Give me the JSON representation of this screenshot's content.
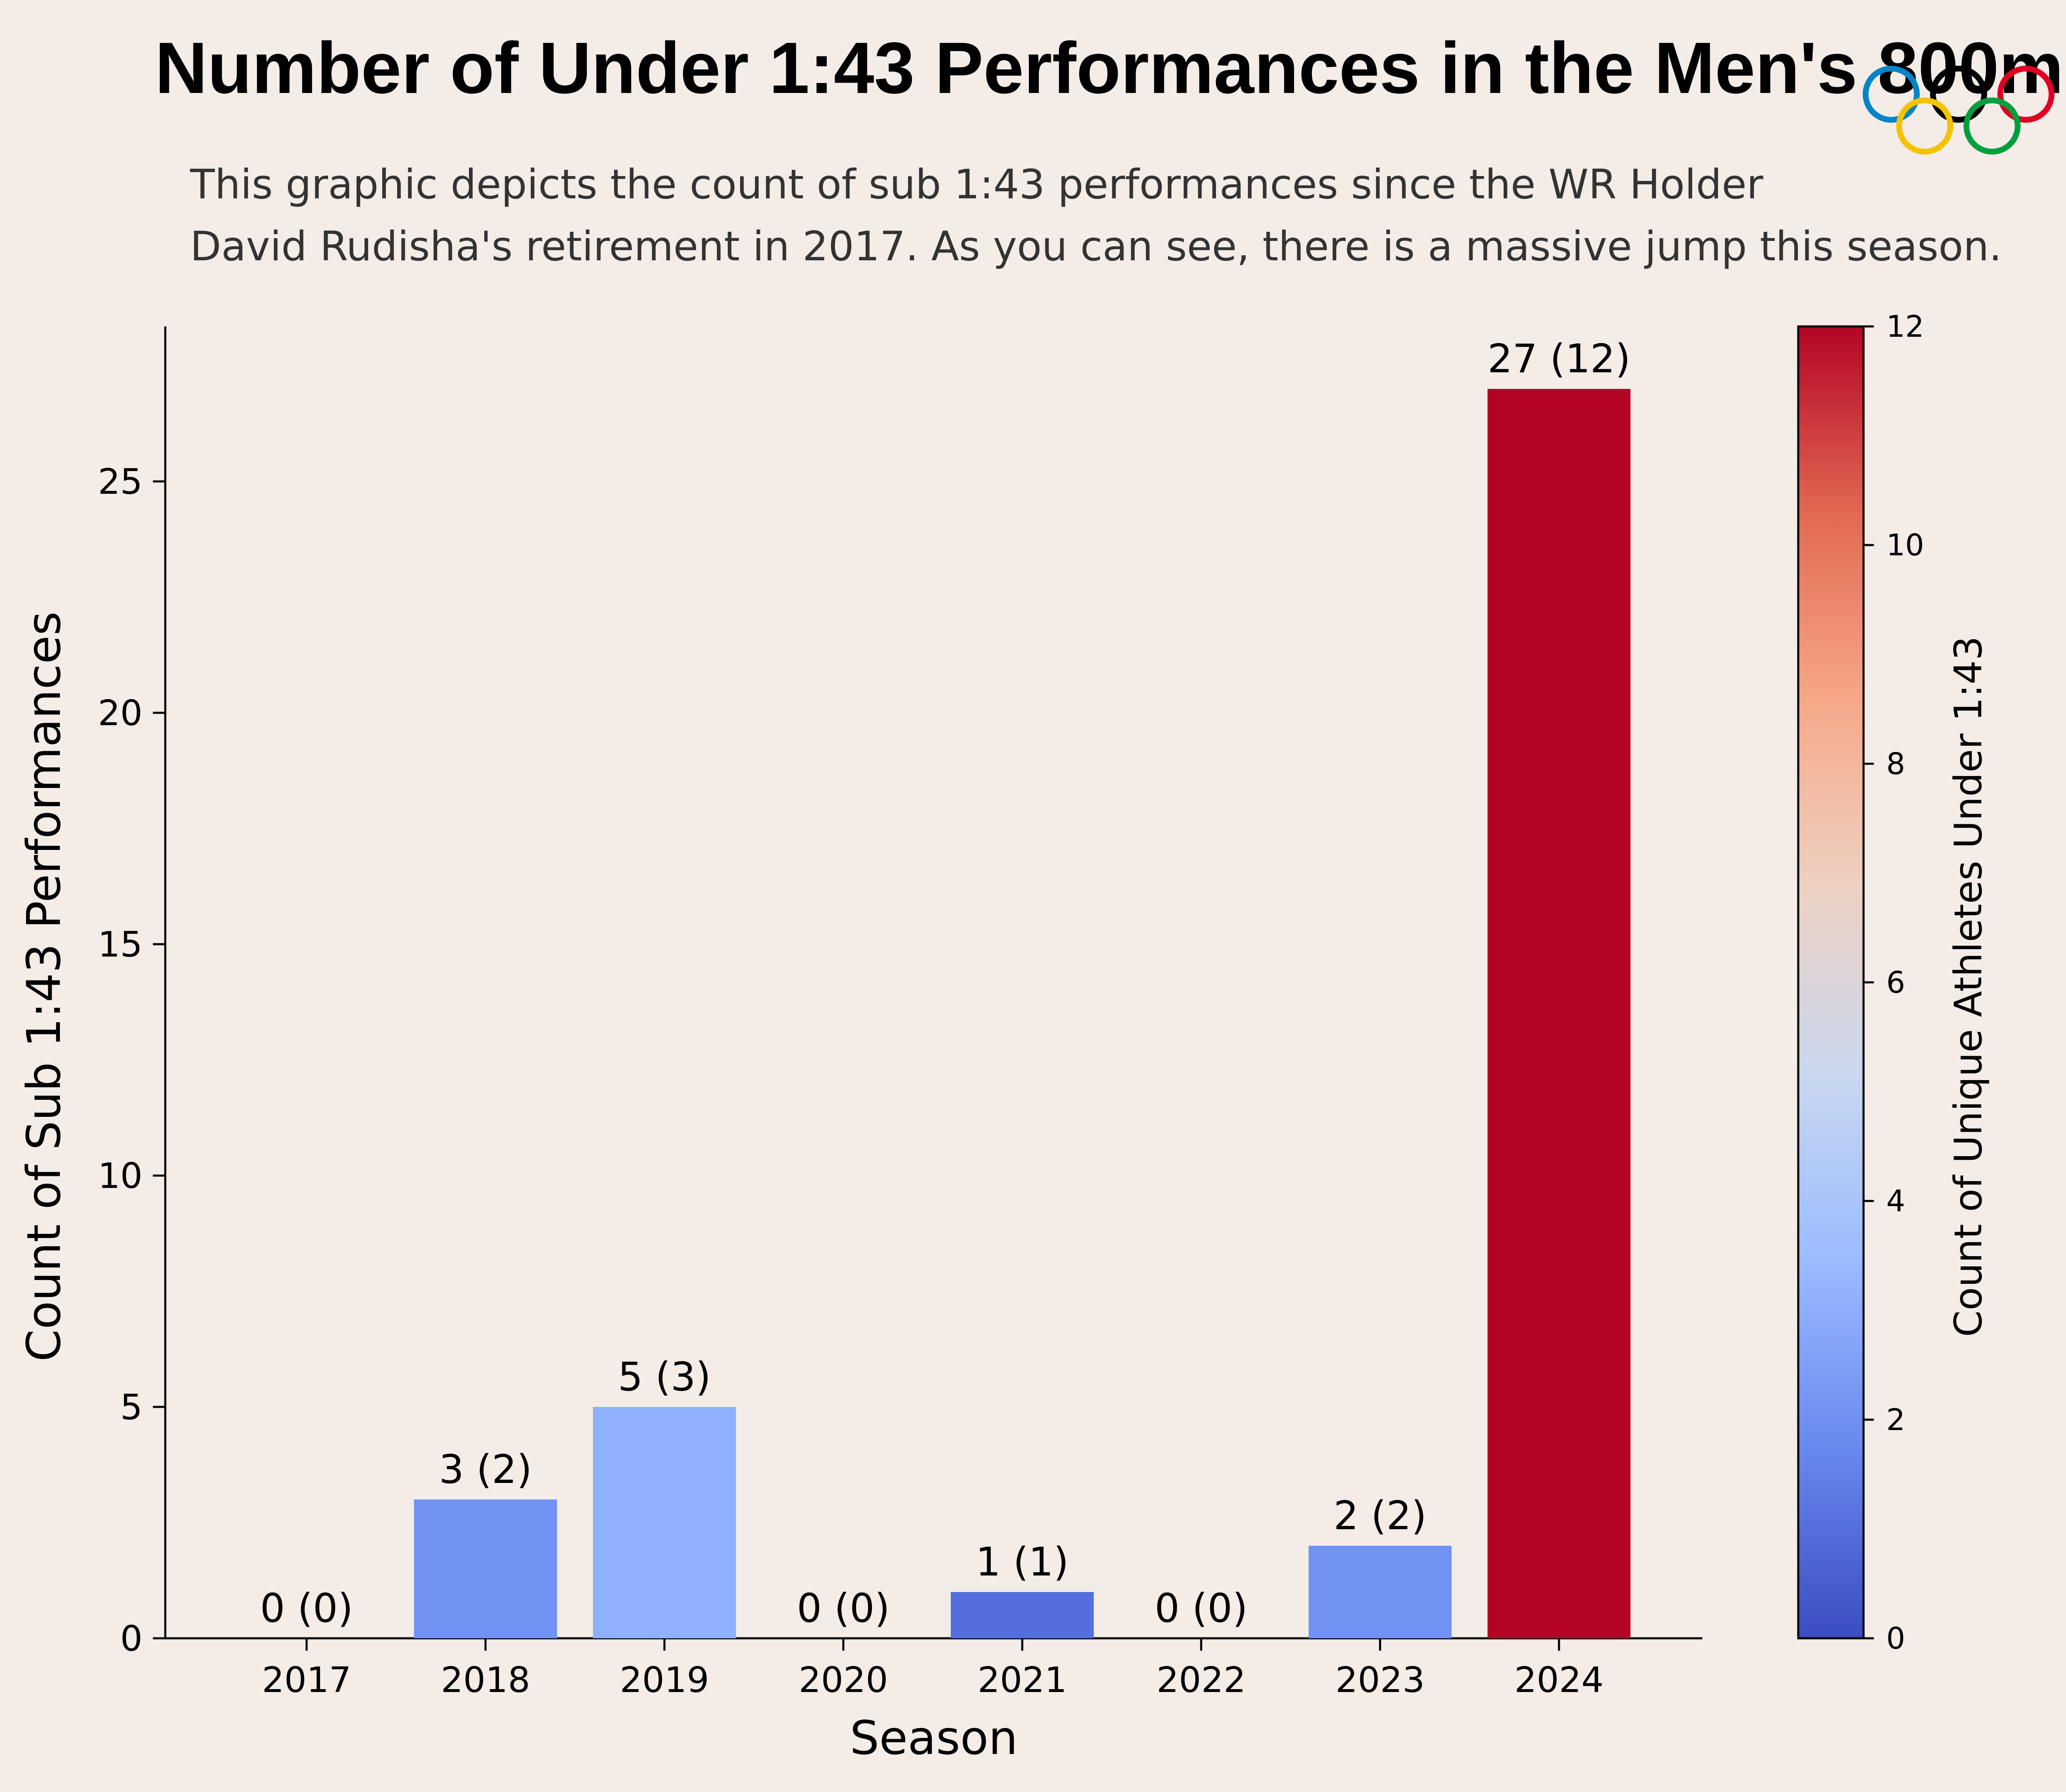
{
  "chart_data": {
    "type": "bar",
    "title": "Number of Under 1:43 Performances in the Men's 800m",
    "subtitle_lines": [
      "This graphic depicts the count of sub 1:43 performances since the WR Holder",
      "David Rudisha's retirement in 2017. As you can see, there is a massive jump this season."
    ],
    "categories": [
      "2017",
      "2018",
      "2019",
      "2020",
      "2021",
      "2022",
      "2023",
      "2024"
    ],
    "values": [
      0,
      3,
      5,
      0,
      1,
      0,
      2,
      27
    ],
    "unique_athletes": [
      0,
      2,
      3,
      0,
      1,
      0,
      2,
      12
    ],
    "bar_labels": [
      "0 (0)",
      "3 (2)",
      "5 (3)",
      "0 (0)",
      "1 (1)",
      "0 (0)",
      "2 (2)",
      "27 (12)"
    ],
    "bar_colors": [
      "#3b4cc0",
      "#7093f3",
      "#8fb1fe",
      "#3b4cc0",
      "#536edd",
      "#3b4cc0",
      "#7093f3",
      "#b40426"
    ],
    "xlabel": "Season",
    "ylabel": "Count of Sub 1:43 Performances",
    "ylim": [
      0,
      28.35
    ],
    "yticks": [
      0,
      5,
      10,
      15,
      20,
      25
    ],
    "grid": false,
    "colorbar": {
      "label": "Count of Unique Athletes Under 1:43",
      "range": [
        0,
        12
      ],
      "ticks": [
        0,
        2,
        4,
        6,
        8,
        10,
        12
      ],
      "colormap": "coolwarm",
      "stops": [
        "#3b4cc0",
        "#6788ee",
        "#9abbff",
        "#c9d7f0",
        "#edd1c2",
        "#f7a889",
        "#e26952",
        "#b40426"
      ]
    },
    "logo": {
      "name": "olympic-rings",
      "ring_colors": [
        "#0085c7",
        "#000000",
        "#df0024",
        "#f4c300",
        "#009f3d"
      ]
    }
  }
}
